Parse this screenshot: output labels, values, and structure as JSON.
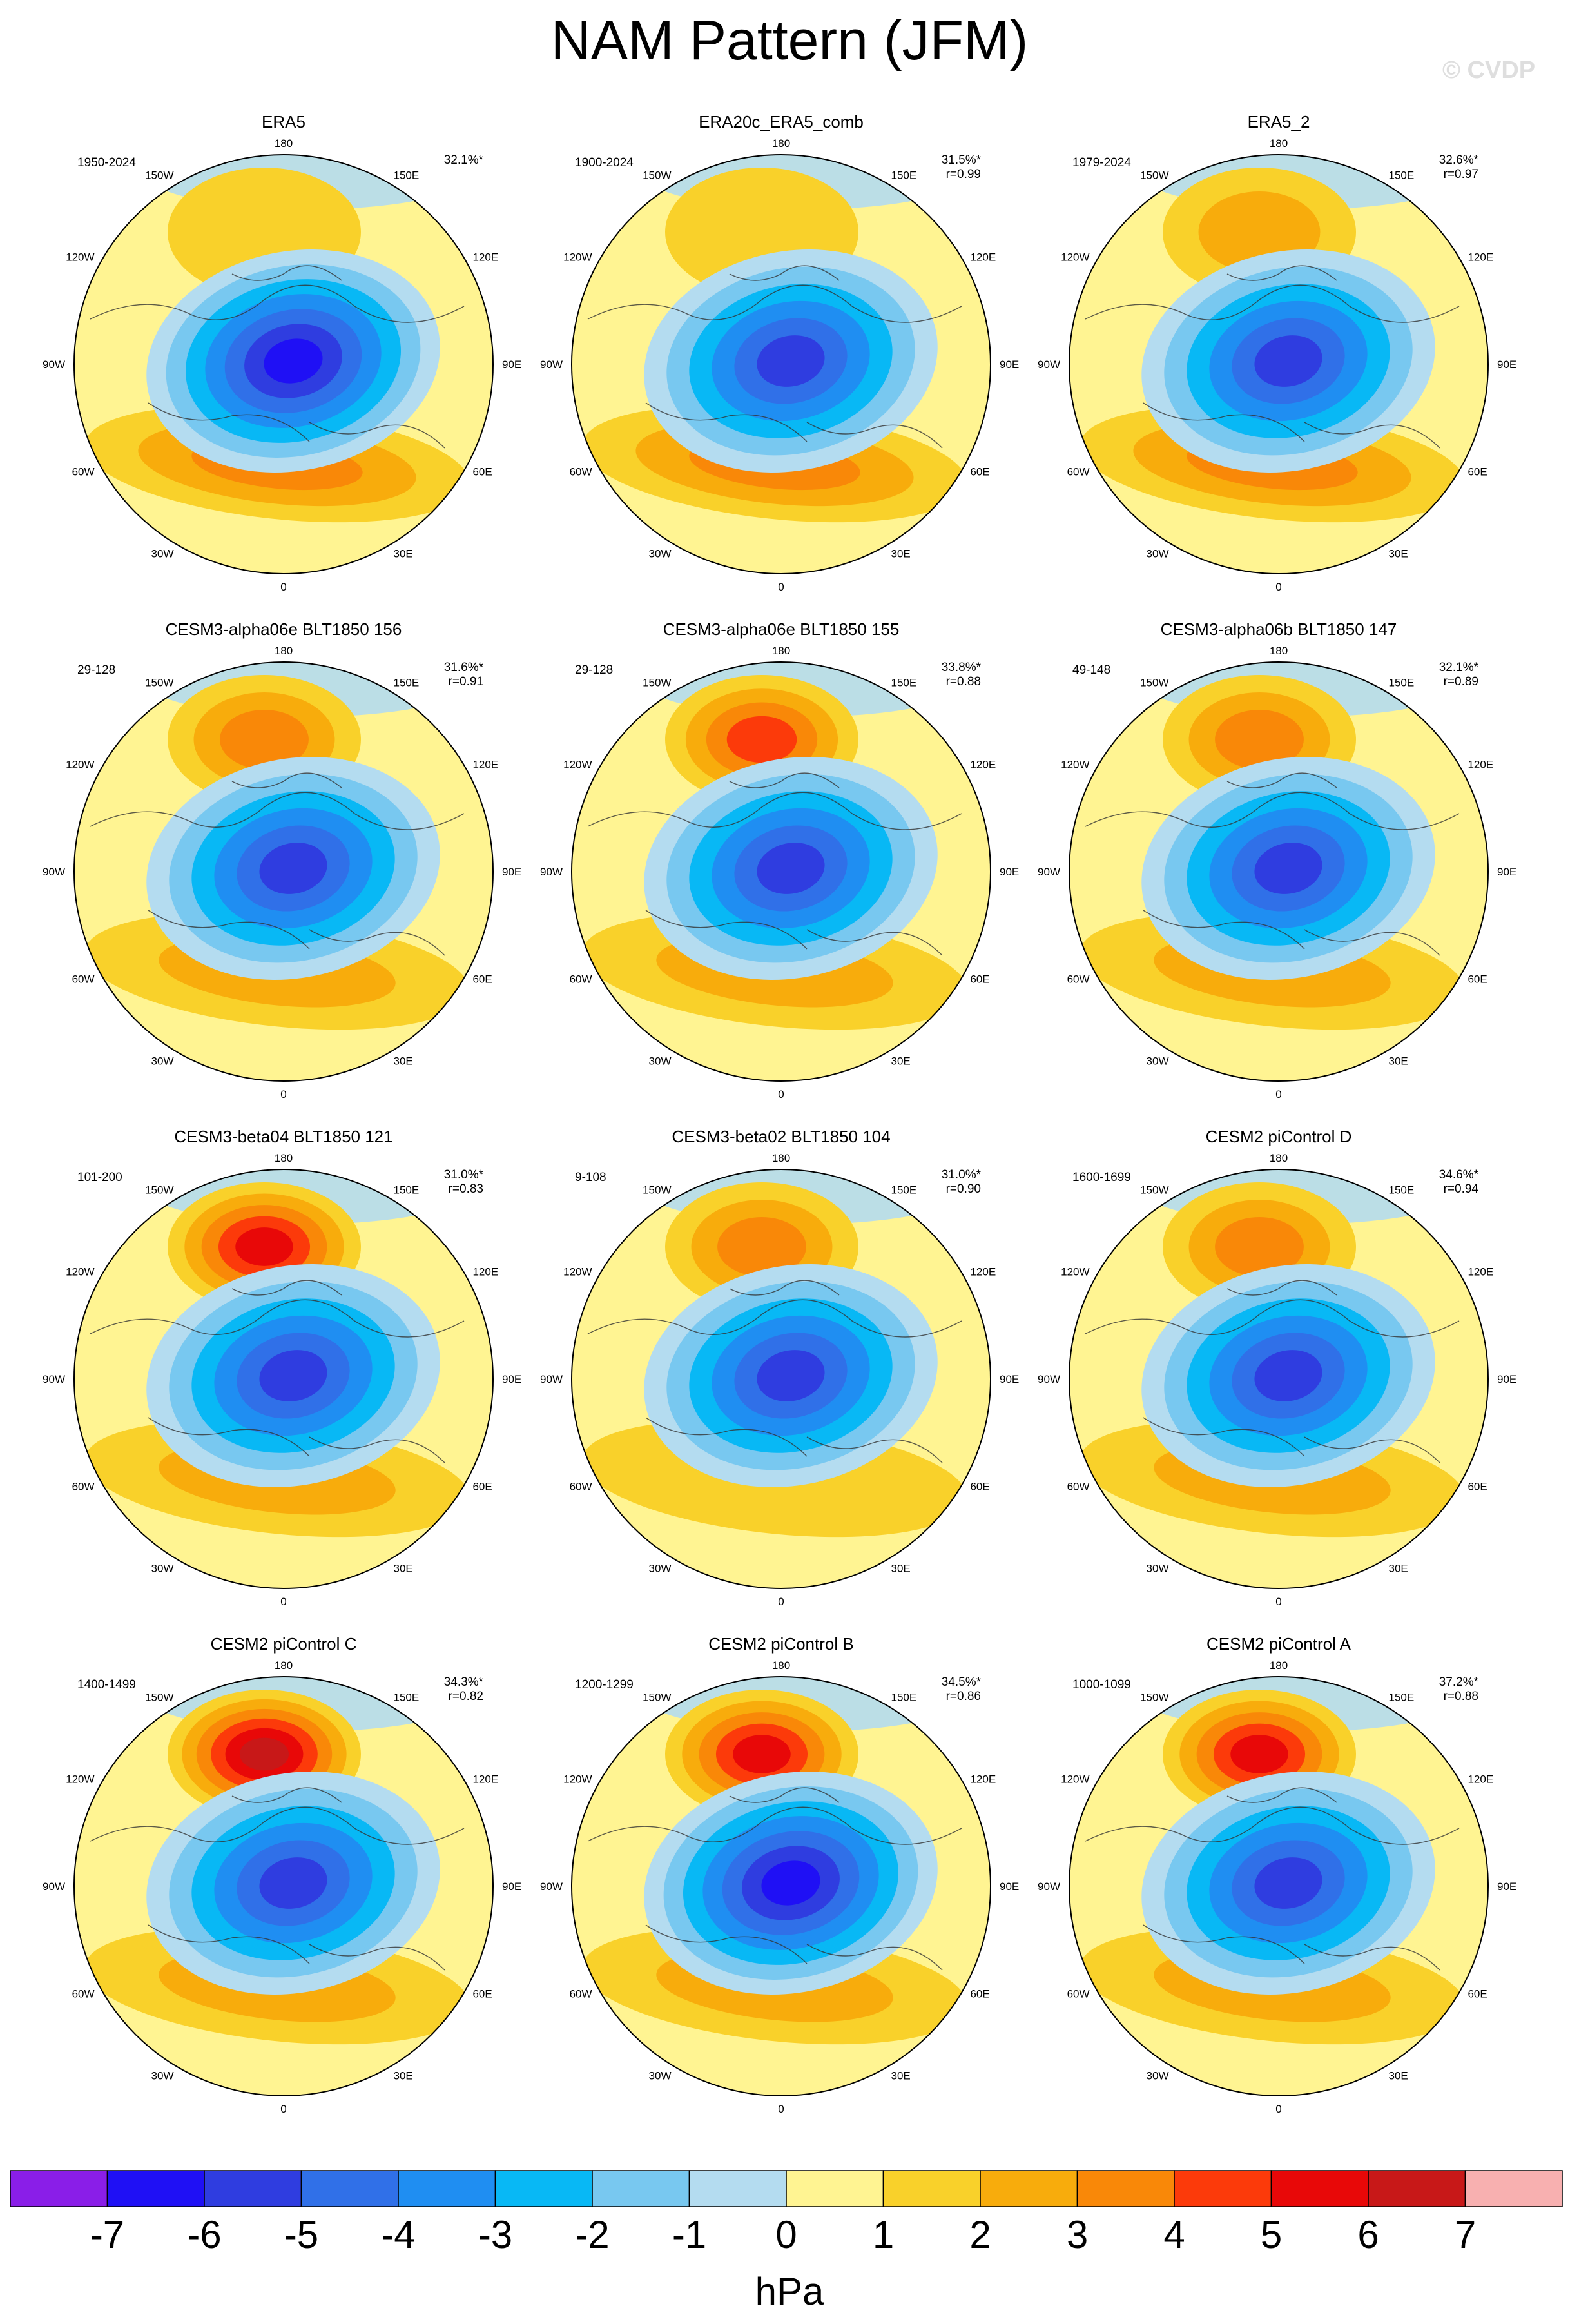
{
  "title": "NAM Pattern (JFM)",
  "watermark": "© CVDP",
  "colorbar": {
    "colors": [
      "#8a1ee8",
      "#1f10f5",
      "#2f3de0",
      "#3070e8",
      "#1f8ef2",
      "#08b8f5",
      "#78c8f0",
      "#b4dcf0",
      "#fff492",
      "#f9d12a",
      "#f8ac0c",
      "#f98808",
      "#fc3a0a",
      "#e80808",
      "#c81818",
      "#f8b0b0"
    ],
    "tick_labels": [
      "-7",
      "-6",
      "-5",
      "-4",
      "-3",
      "-2",
      "-1",
      "0",
      "1",
      "2",
      "3",
      "4",
      "5",
      "6",
      "7"
    ],
    "unit_label": "hPa"
  },
  "map_labels": {
    "top": "180",
    "bottom": "0",
    "upper_left": "150W",
    "upper_right": "150E",
    "upper_mid_left": "120W",
    "upper_mid_right": "120E",
    "left": "90W",
    "right": "90E",
    "lower_mid_left": "60W",
    "lower_mid_right": "60E",
    "lower_left": "30W",
    "lower_right": "30E"
  },
  "chart_data": [
    {
      "type": "heatmap",
      "title": "ERA5",
      "period": "1950-2024",
      "pct": "32.1%*",
      "r": "",
      "low_min": -6.2,
      "high_atl_max": 3.4,
      "high_pac_max": 1.3,
      "pac_sign": "positive"
    },
    {
      "type": "heatmap",
      "title": "ERA20c_ERA5_comb",
      "period": "1900-2024",
      "pct": "31.5%*",
      "r": "r=0.99",
      "low_min": -5.6,
      "high_atl_max": 3.3,
      "high_pac_max": 1.8,
      "pac_sign": "positive"
    },
    {
      "type": "heatmap",
      "title": "ERA5_2",
      "period": "1979-2024",
      "pct": "32.6%*",
      "r": "r=0.97",
      "low_min": -6.0,
      "high_atl_max": 3.2,
      "high_pac_max": 2.3,
      "pac_sign": "positive"
    },
    {
      "type": "heatmap",
      "title": "CESM3-alpha06e BLT1850 156",
      "period": "29-128",
      "pct": "31.6%*",
      "r": "r=0.91",
      "low_min": -5.8,
      "high_atl_max": 2.4,
      "high_pac_max": 3.8,
      "pac_sign": "positive"
    },
    {
      "type": "heatmap",
      "title": "CESM3-alpha06e BLT1850 155",
      "period": "29-128",
      "pct": "33.8%*",
      "r": "r=0.88",
      "low_min": -5.8,
      "high_atl_max": 2.4,
      "high_pac_max": 4.6,
      "pac_sign": "positive"
    },
    {
      "type": "heatmap",
      "title": "CESM3-alpha06b BLT1850 147",
      "period": "49-148",
      "pct": "32.1%*",
      "r": "r=0.89",
      "low_min": -5.8,
      "high_atl_max": 2.4,
      "high_pac_max": 3.9,
      "pac_sign": "positive"
    },
    {
      "type": "heatmap",
      "title": "CESM3-beta04 BLT1850 121",
      "period": "101-200",
      "pct": "31.0%*",
      "r": "r=0.83",
      "low_min": -5.2,
      "high_atl_max": 2.8,
      "high_pac_max": 5.0,
      "pac_sign": "positive"
    },
    {
      "type": "heatmap",
      "title": "CESM3-beta02 BLT1850 104",
      "period": "9-108",
      "pct": "31.0%*",
      "r": "r=0.90",
      "low_min": -5.5,
      "high_atl_max": 1.8,
      "high_pac_max": 3.9,
      "pac_sign": "positive"
    },
    {
      "type": "heatmap",
      "title": "CESM2 piControl D",
      "period": "1600-1699",
      "pct": "34.6%*",
      "r": "r=0.94",
      "low_min": -5.8,
      "high_atl_max": 2.6,
      "high_pac_max": 3.9,
      "pac_sign": "positive"
    },
    {
      "type": "heatmap",
      "title": "CESM2 piControl C",
      "period": "1400-1499",
      "pct": "34.3%*",
      "r": "r=0.82",
      "low_min": -5.6,
      "high_atl_max": 2.8,
      "high_pac_max": 6.0,
      "pac_sign": "positive"
    },
    {
      "type": "heatmap",
      "title": "CESM2 piControl B",
      "period": "1200-1299",
      "pct": "34.5%*",
      "r": "r=0.86",
      "low_min": -6.2,
      "high_atl_max": 2.6,
      "high_pac_max": 5.3,
      "pac_sign": "positive"
    },
    {
      "type": "heatmap",
      "title": "CESM2 piControl A",
      "period": "1000-1099",
      "pct": "37.2%*",
      "r": "r=0.88",
      "low_min": -5.8,
      "high_atl_max": 2.4,
      "high_pac_max": 5.2,
      "pac_sign": "positive"
    }
  ]
}
